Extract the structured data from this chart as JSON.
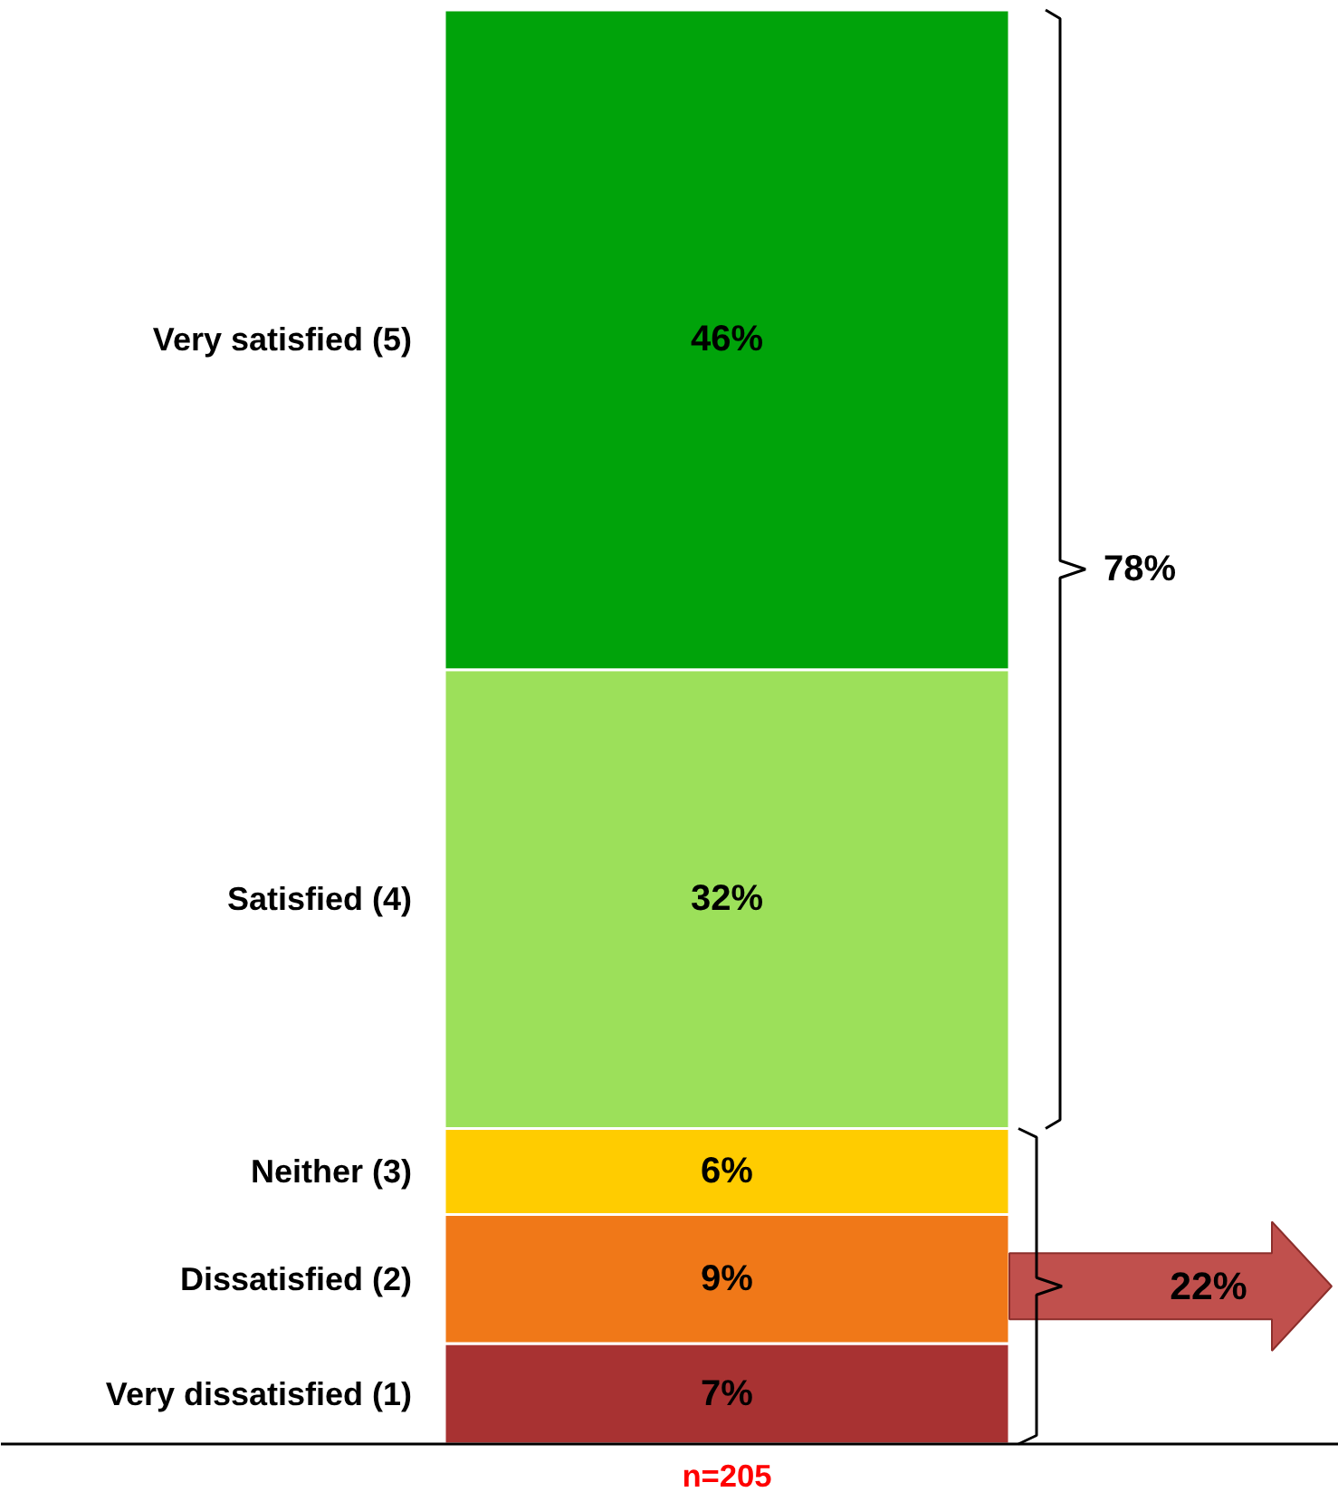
{
  "chart_data": {
    "type": "bar",
    "stacked": true,
    "categories": [
      null
    ],
    "legend": false,
    "tick_labels": false,
    "series": [
      {
        "name": "Very dissatisfied (1)",
        "color": "#a83232",
        "values": [
          7
        ],
        "value_labels": [
          "7%"
        ]
      },
      {
        "name": "Dissatisfied (2)",
        "color": "#f07818",
        "values": [
          9
        ],
        "value_labels": [
          "9%"
        ]
      },
      {
        "name": "Neither (3)",
        "color": "#ffcc00",
        "values": [
          6
        ],
        "value_labels": [
          "6%"
        ]
      },
      {
        "name": "Satisfied (4)",
        "color": "#9ce05a",
        "values": [
          32
        ],
        "value_labels": [
          "32%"
        ]
      },
      {
        "name": "Very satisfied (5)",
        "color": "#00a30a",
        "values": [
          46
        ],
        "value_labels": [
          "46%"
        ]
      }
    ],
    "annotations": [
      "78%",
      "22%",
      "n=205"
    ]
  }
}
